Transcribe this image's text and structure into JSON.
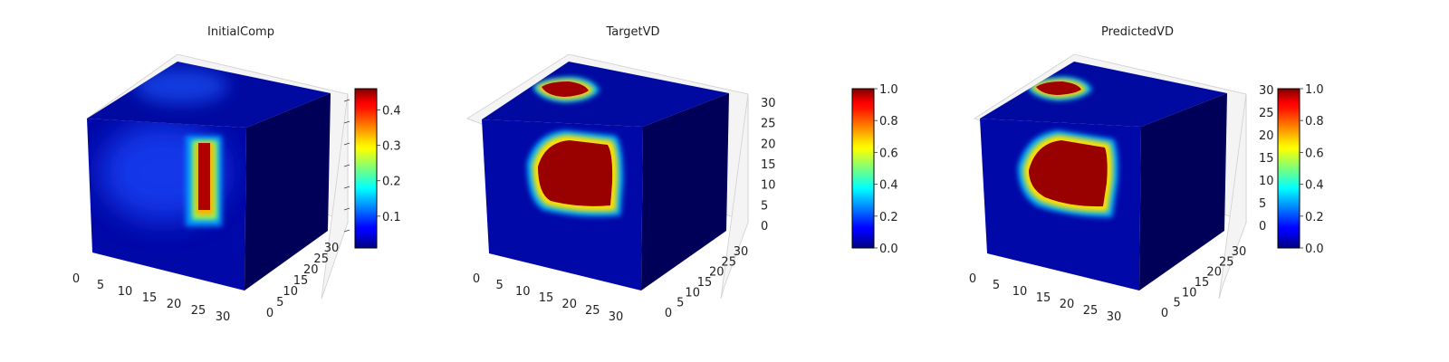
{
  "chart_data": [
    {
      "type": "heatmap",
      "title": "InitialComp",
      "x_ticks": [
        0,
        5,
        10,
        15,
        20,
        25,
        30
      ],
      "y_ticks": [
        0,
        5,
        10,
        15,
        20,
        25,
        30
      ],
      "z_ticks": [],
      "colorbar": {
        "colormap": "jet",
        "range": [
          0.01,
          0.46
        ],
        "ticks": [
          "0.1",
          "0.2",
          "0.3",
          "0.4"
        ],
        "tick_values": [
          0.1,
          0.2,
          0.3,
          0.4
        ]
      },
      "grid": true
    },
    {
      "type": "heatmap",
      "title": "TargetVD",
      "x_ticks": [
        0,
        5,
        10,
        15,
        20,
        25,
        30
      ],
      "y_ticks": [
        0,
        5,
        10,
        15,
        20,
        25,
        30
      ],
      "z_ticks": [
        0,
        5,
        10,
        15,
        20,
        25,
        30
      ],
      "colorbar": {
        "colormap": "jet",
        "range": [
          0,
          1
        ],
        "ticks": [
          "0.0",
          "0.2",
          "0.4",
          "0.6",
          "0.8",
          "1.0"
        ],
        "tick_values": [
          0,
          0.2,
          0.4,
          0.6,
          0.8,
          1.0
        ]
      },
      "grid": true
    },
    {
      "type": "heatmap",
      "title": "PredictedVD",
      "x_ticks": [
        0,
        5,
        10,
        15,
        20,
        25,
        30
      ],
      "y_ticks": [
        0,
        5,
        10,
        15,
        20,
        25,
        30
      ],
      "z_ticks": [
        0,
        5,
        10,
        15,
        20,
        25,
        30
      ],
      "colorbar": {
        "colormap": "jet",
        "range": [
          0,
          1
        ],
        "ticks": [
          "0.0",
          "0.2",
          "0.4",
          "0.6",
          "0.8",
          "1.0"
        ],
        "tick_values": [
          0,
          0.2,
          0.4,
          0.6,
          0.8,
          1.0
        ]
      },
      "grid": true
    }
  ]
}
